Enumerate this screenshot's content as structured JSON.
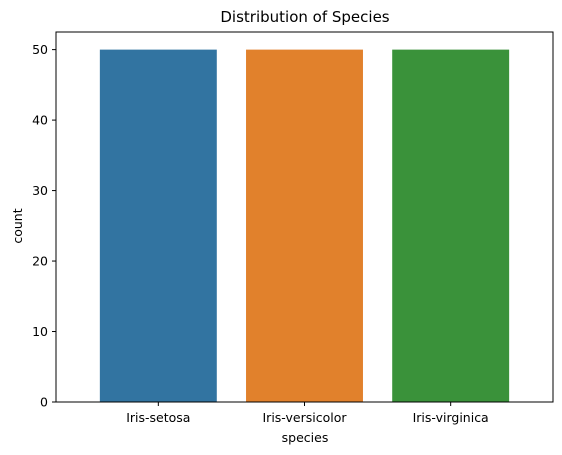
{
  "chart_data": {
    "type": "bar",
    "title": "Distribution of Species",
    "xlabel": "species",
    "ylabel": "count",
    "categories": [
      "Iris-setosa",
      "Iris-versicolor",
      "Iris-virginica"
    ],
    "values": [
      50,
      50,
      50
    ],
    "colors": [
      "#3274a1",
      "#e1812c",
      "#3a923a"
    ],
    "ylim": [
      0,
      52.5
    ],
    "yticks": [
      0,
      10,
      20,
      30,
      40,
      50
    ],
    "grid": false,
    "legend": "none"
  }
}
